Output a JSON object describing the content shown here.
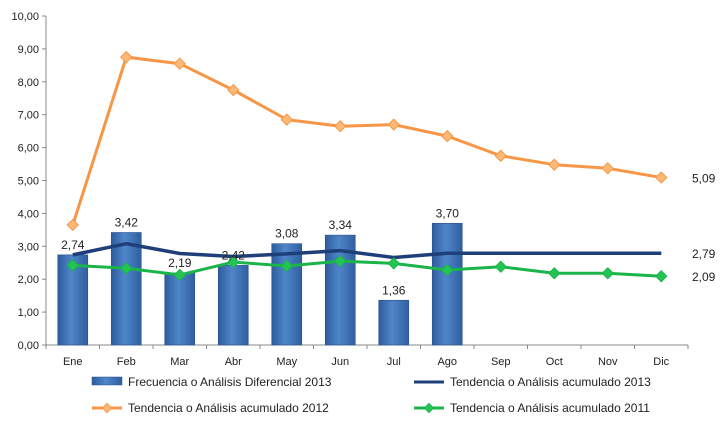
{
  "chart_data": {
    "type": "bar",
    "title": "",
    "xlabel": "",
    "ylabel": "",
    "ylim": [
      0,
      10
    ],
    "ytick_labels": [
      "0,00",
      "1,00",
      "2,00",
      "3,00",
      "4,00",
      "5,00",
      "6,00",
      "7,00",
      "8,00",
      "9,00",
      "10,00"
    ],
    "categories": [
      "Ene",
      "Feb",
      "Mar",
      "Abr",
      "May",
      "Jun",
      "Jul",
      "Ago",
      "Sep",
      "Oct",
      "Nov",
      "Dic"
    ],
    "grid": false,
    "legend_position": "bottom",
    "series": [
      {
        "name": "Frecuencia o Análisis Diferencial 2013",
        "kind": "bar",
        "color": "#3e73b8",
        "values": [
          2.74,
          3.42,
          2.19,
          2.42,
          3.08,
          3.34,
          1.36,
          3.7,
          null,
          null,
          null,
          null
        ],
        "labels": [
          "2,74",
          "3,42",
          "2,19",
          "2,42",
          "3,08",
          "3,34",
          "1,36",
          "3,70",
          "",
          "",
          "",
          ""
        ]
      },
      {
        "name": "Tendencia o Análisis acumulado 2013",
        "kind": "line",
        "color": "#1f3f7a",
        "values": [
          2.74,
          3.08,
          2.78,
          2.69,
          2.77,
          2.87,
          2.66,
          2.79,
          2.79,
          2.79,
          2.79,
          2.79
        ],
        "end_label": "2,79"
      },
      {
        "name": "Tendencia o Análisis acumulado 2012",
        "kind": "line",
        "color": "#f79646",
        "marker_color": "#fab974",
        "values": [
          3.65,
          8.75,
          8.55,
          7.75,
          6.85,
          6.65,
          6.7,
          6.35,
          5.75,
          5.48,
          5.37,
          5.09
        ],
        "end_label": "5,09"
      },
      {
        "name": "Tendencia o Análisis acumulado 2011",
        "kind": "line",
        "color": "#1bb44a",
        "marker_color": "#23c552",
        "values": [
          2.42,
          2.33,
          2.13,
          2.52,
          2.4,
          2.55,
          2.48,
          2.28,
          2.38,
          2.18,
          2.18,
          2.09
        ],
        "end_label": "2,09"
      }
    ]
  }
}
